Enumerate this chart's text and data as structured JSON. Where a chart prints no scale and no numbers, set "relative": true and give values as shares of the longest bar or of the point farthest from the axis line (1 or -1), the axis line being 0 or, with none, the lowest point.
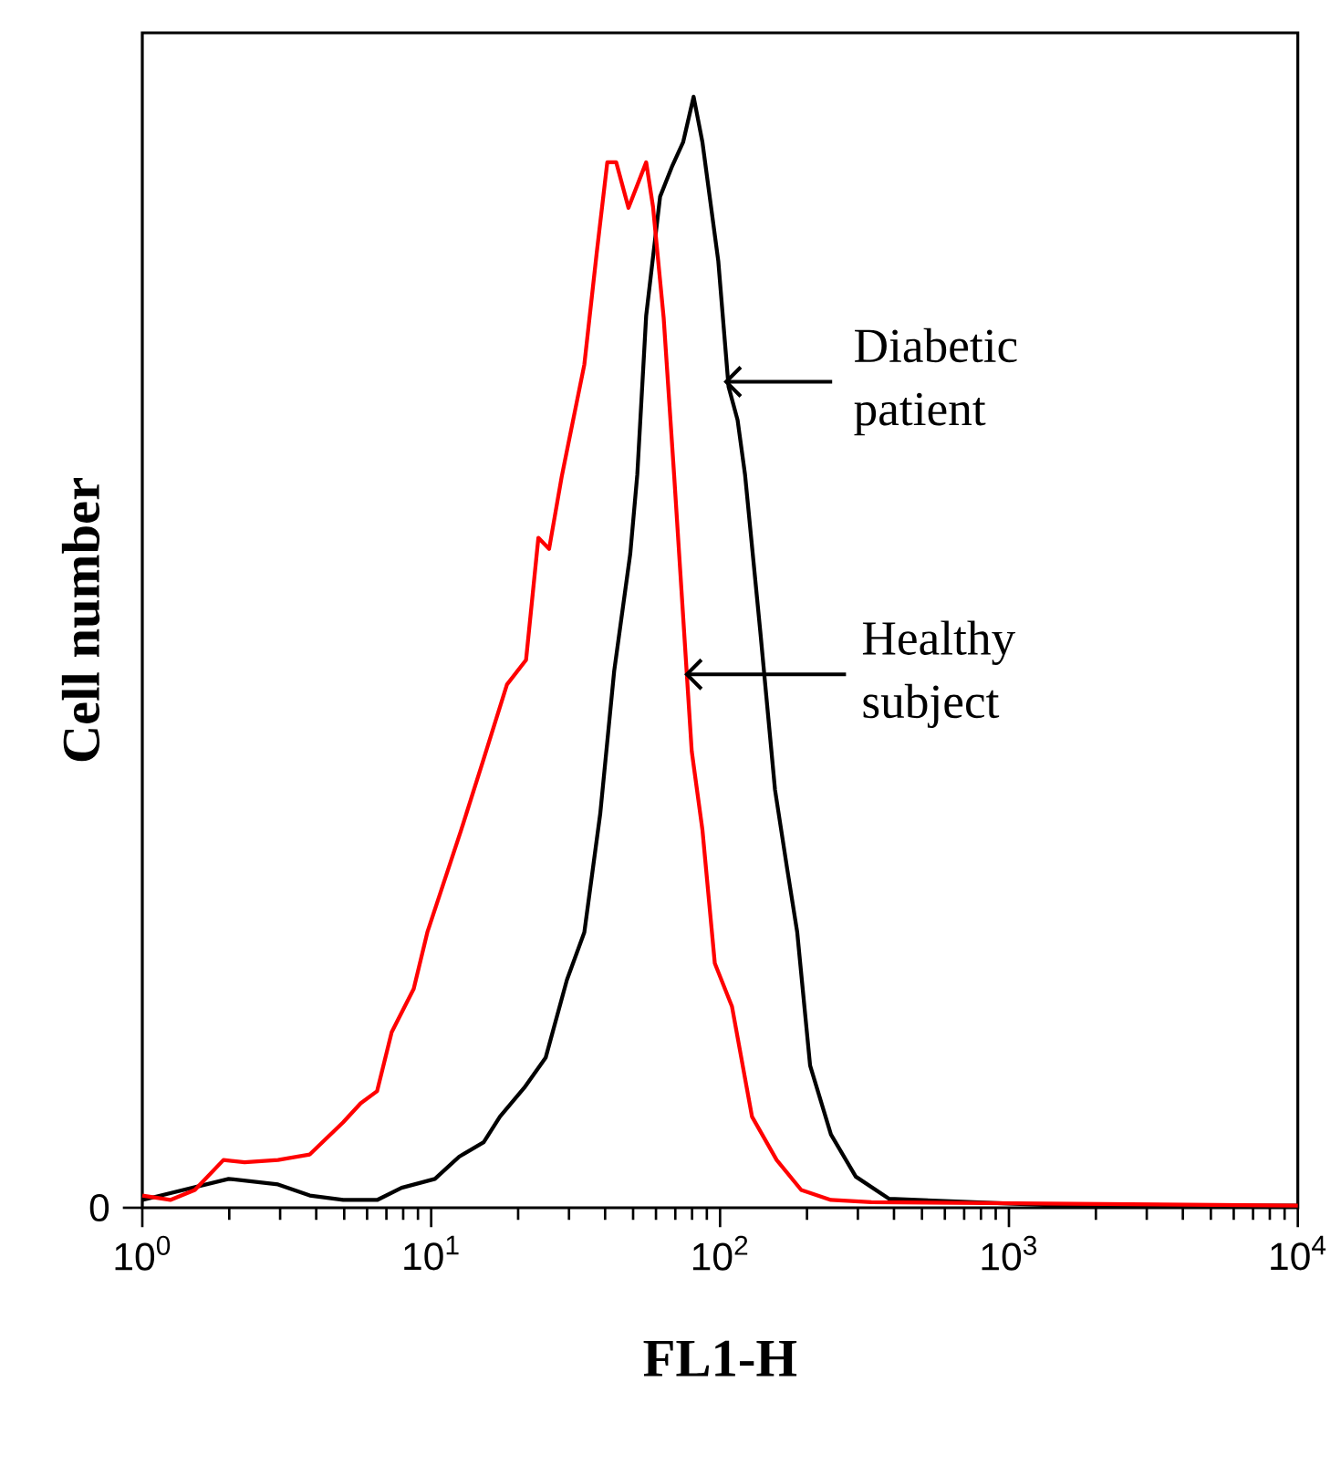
{
  "chart_data": {
    "type": "line",
    "xlabel": "FL1-H",
    "ylabel": "Cell number",
    "log": "x",
    "relative": true,
    "xlim": [
      1,
      10000
    ],
    "xticks": [
      {
        "value": 1,
        "label": "10$^{0}$"
      },
      {
        "value": 10,
        "label": "10$^{1}$"
      },
      {
        "value": 100,
        "label": "10$^{2}$"
      },
      {
        "value": 1000,
        "label": "10$^{3}$"
      },
      {
        "value": 10000,
        "label": "10$^{4}$"
      }
    ],
    "series": [
      {
        "color": "#000000",
        "x": [
          1,
          1.99,
          2.95,
          3.8,
          4.96,
          6.5,
          7.9,
          10.3,
          12.5,
          15.2,
          17.3,
          21,
          24.9,
          29.5,
          33.9,
          38.5,
          43,
          48.9,
          51.7,
          55.5,
          62,
          68.4,
          74.5,
          81,
          86.9,
          98.6,
          107,
          115,
          122,
          138,
          155,
          171,
          185,
          205,
          242,
          295,
          385,
          1520,
          10000
        ],
        "values": [
          0.007,
          0.026,
          0.021,
          0.011,
          0.007,
          0.007,
          0.018,
          0.026,
          0.046,
          0.059,
          0.082,
          0.108,
          0.135,
          0.205,
          0.248,
          0.355,
          0.483,
          0.589,
          0.66,
          0.803,
          0.91,
          0.938,
          0.959,
          1,
          0.959,
          0.852,
          0.739,
          0.709,
          0.66,
          0.517,
          0.376,
          0.304,
          0.248,
          0.128,
          0.066,
          0.028,
          0.008,
          0.002,
          0.002
        ]
      },
      {
        "color": "#ff0000",
        "x": [
          1,
          1.25,
          1.52,
          1.91,
          2.26,
          2.95,
          3.8,
          4.96,
          5.7,
          6.5,
          7.3,
          8.7,
          9.7,
          12.7,
          15.2,
          18.3,
          21.3,
          23.5,
          25.6,
          28.3,
          33.9,
          37.4,
          40.7,
          43.7,
          48.2,
          55.5,
          58.6,
          63.8,
          69.4,
          79.8,
          86.9,
          95.9,
          110,
          129,
          157,
          191,
          242,
          334,
          10000
        ],
        "values": [
          0.011,
          0.007,
          0.016,
          0.043,
          0.041,
          0.043,
          0.048,
          0.077,
          0.094,
          0.105,
          0.158,
          0.197,
          0.248,
          0.34,
          0.404,
          0.471,
          0.493,
          0.603,
          0.593,
          0.658,
          0.759,
          0.859,
          0.941,
          0.941,
          0.9,
          0.941,
          0.901,
          0.801,
          0.658,
          0.411,
          0.34,
          0.22,
          0.181,
          0.082,
          0.043,
          0.016,
          0.007,
          0.005,
          0.002
        ]
      }
    ],
    "annotations": [
      "Diabetic patient",
      "Healthy subject",
      "0"
    ]
  }
}
